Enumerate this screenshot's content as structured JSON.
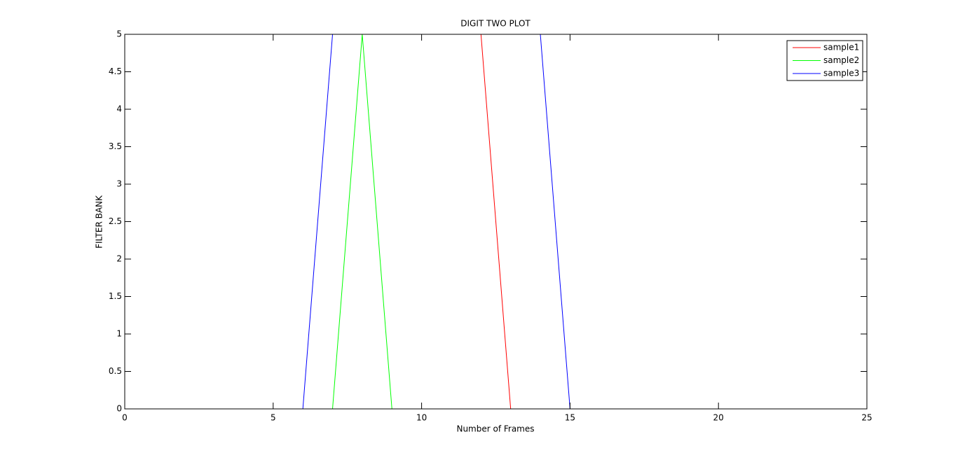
{
  "chart_data": {
    "type": "line",
    "title": "DIGIT TWO PLOT",
    "x_label": "Number of Frames",
    "y_label": "FILTER BANK",
    "x": [
      0,
      1,
      2,
      3,
      4,
      5,
      6,
      7,
      8,
      9,
      10,
      11,
      12,
      13,
      14,
      15,
      16,
      17,
      18,
      19,
      20,
      21,
      22,
      23,
      24,
      25
    ],
    "series": [
      {
        "name": "sample1",
        "color": "#ff0000",
        "values": [
          5,
          5,
          5,
          5,
          5,
          5,
          5,
          5,
          5,
          5,
          5,
          5,
          5,
          0,
          0,
          0,
          0,
          0,
          0,
          0,
          0,
          0,
          0,
          0,
          0,
          0
        ]
      },
      {
        "name": "sample2",
        "color": "#00ff00",
        "values": [
          0,
          0,
          0,
          0,
          0,
          0,
          0,
          0,
          5,
          0,
          0,
          0,
          0,
          0,
          0,
          0,
          0,
          0,
          0,
          0,
          0,
          0,
          0,
          0,
          0,
          0
        ]
      },
      {
        "name": "sample3",
        "color": "#0000ff",
        "values": [
          0,
          0,
          0,
          0,
          0,
          0,
          0,
          5,
          5,
          5,
          5,
          5,
          5,
          5,
          5,
          0,
          0,
          0,
          0,
          0,
          0,
          0,
          0,
          0,
          0,
          0
        ]
      }
    ],
    "xlim": [
      0,
      25
    ],
    "ylim": [
      0,
      5
    ],
    "xticks": [
      0,
      5,
      10,
      15,
      20,
      25
    ],
    "yticks": [
      0,
      0.5,
      1,
      1.5,
      2,
      2.5,
      3,
      3.5,
      4,
      4.5,
      5
    ],
    "legend": "upper right"
  }
}
